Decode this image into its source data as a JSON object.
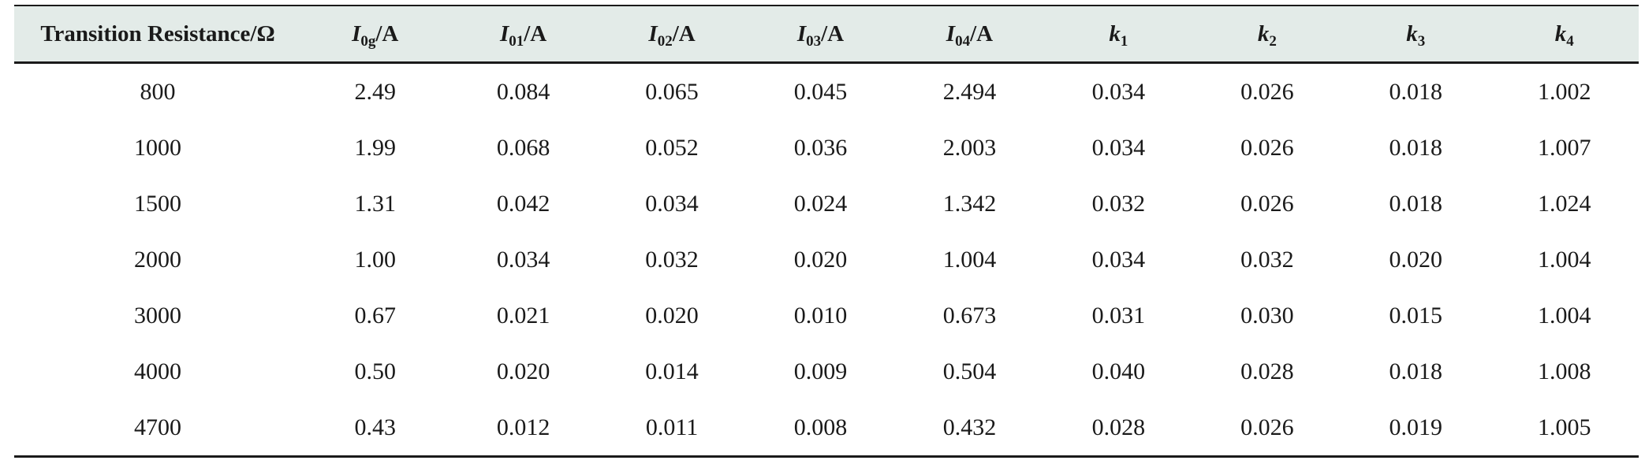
{
  "table": {
    "headers": [
      {
        "symbol": "Transition Resistance/Ω",
        "sub": "",
        "unit": "",
        "italic": false
      },
      {
        "symbol": "I",
        "sub": "0g",
        "unit": "/A",
        "italic": true
      },
      {
        "symbol": "I",
        "sub": "01",
        "unit": "/A",
        "italic": true
      },
      {
        "symbol": "I",
        "sub": "02",
        "unit": "/A",
        "italic": true
      },
      {
        "symbol": "I",
        "sub": "03",
        "unit": "/A",
        "italic": true
      },
      {
        "symbol": "I",
        "sub": "04",
        "unit": "/A",
        "italic": true
      },
      {
        "symbol": "k",
        "sub": "1",
        "unit": "",
        "italic": true
      },
      {
        "symbol": "k",
        "sub": "2",
        "unit": "",
        "italic": true
      },
      {
        "symbol": "k",
        "sub": "3",
        "unit": "",
        "italic": true
      },
      {
        "symbol": "k",
        "sub": "4",
        "unit": "",
        "italic": true
      }
    ],
    "rows": [
      [
        "800",
        "2.49",
        "0.084",
        "0.065",
        "0.045",
        "2.494",
        "0.034",
        "0.026",
        "0.018",
        "1.002"
      ],
      [
        "1000",
        "1.99",
        "0.068",
        "0.052",
        "0.036",
        "2.003",
        "0.034",
        "0.026",
        "0.018",
        "1.007"
      ],
      [
        "1500",
        "1.31",
        "0.042",
        "0.034",
        "0.024",
        "1.342",
        "0.032",
        "0.026",
        "0.018",
        "1.024"
      ],
      [
        "2000",
        "1.00",
        "0.034",
        "0.032",
        "0.020",
        "1.004",
        "0.034",
        "0.032",
        "0.020",
        "1.004"
      ],
      [
        "3000",
        "0.67",
        "0.021",
        "0.020",
        "0.010",
        "0.673",
        "0.031",
        "0.030",
        "0.015",
        "1.004"
      ],
      [
        "4000",
        "0.50",
        "0.020",
        "0.014",
        "0.009",
        "0.504",
        "0.040",
        "0.028",
        "0.018",
        "1.008"
      ],
      [
        "4700",
        "0.43",
        "0.012",
        "0.011",
        "0.008",
        "0.432",
        "0.028",
        "0.026",
        "0.019",
        "1.005"
      ]
    ],
    "header_bg": "#e3ebe8",
    "rule_color": "#1a1a1a"
  }
}
